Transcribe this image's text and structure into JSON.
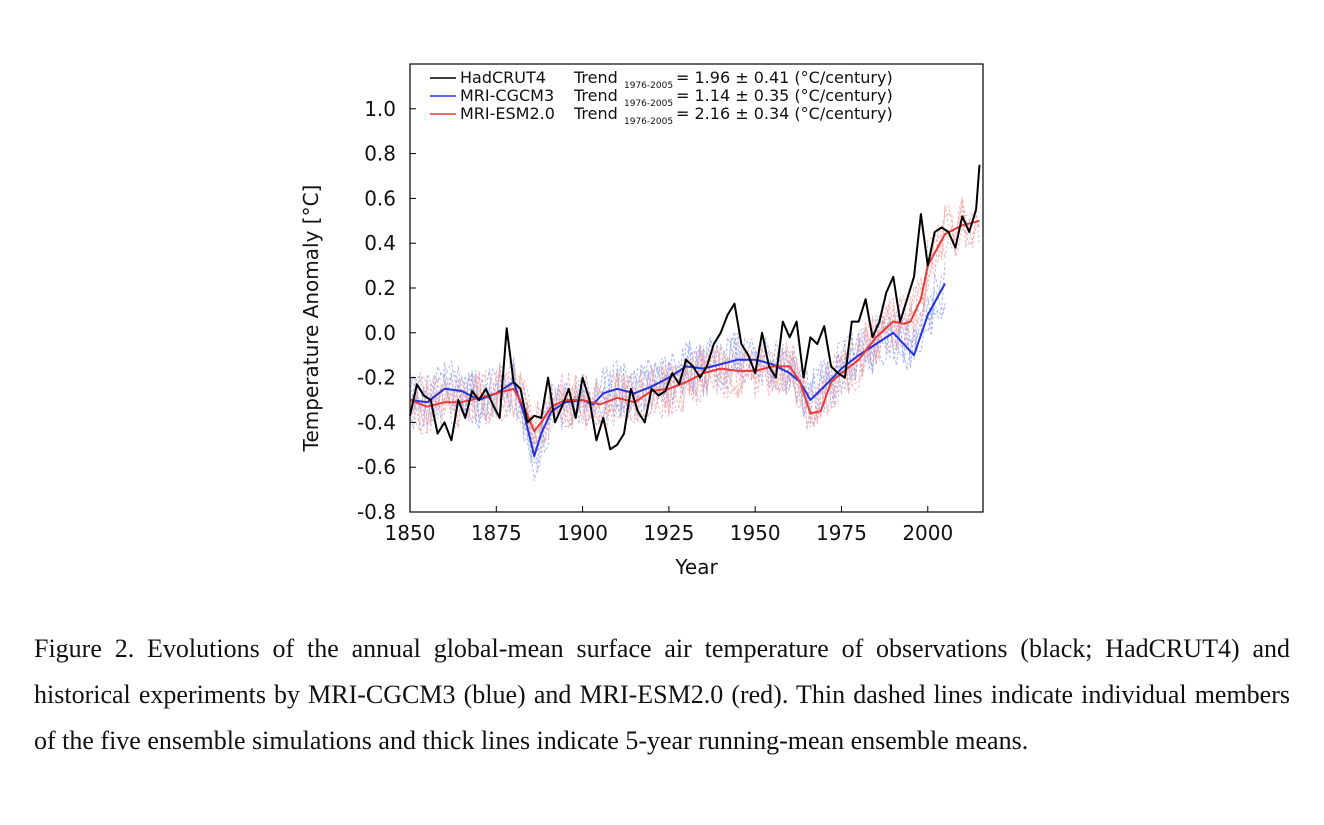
{
  "figure": {
    "caption": "Figure 2. Evolutions of the annual global-mean surface air temperature of observations (black; HadCRUT4) and historical experiments by MRI-CGCM3 (blue) and MRI-ESM2.0 (red). Thin dashed lines indicate individual members of the five ensemble simulations and thick lines indicate 5-year running-mean ensemble means."
  },
  "legend": [
    {
      "name": "HadCRUT4",
      "trend_label": "Trend",
      "trend_sub": "1976-2005",
      "trend_value": "=  1.96 ± 0.41 (°C/century)",
      "color": "#000000"
    },
    {
      "name": "MRI-CGCM3",
      "trend_label": "Trend",
      "trend_sub": "1976-2005",
      "trend_value": "=  1.14 ± 0.35 (°C/century)",
      "color": "#2233dd"
    },
    {
      "name": "MRI-ESM2.0",
      "trend_label": "Trend",
      "trend_sub": "1976-2005",
      "trend_value": "=  2.16 ± 0.34 (°C/century)",
      "color": "#e83a3a"
    }
  ],
  "chart_data": {
    "type": "line",
    "xlabel": "Year",
    "ylabel": "Temperature Anomaly [°C]",
    "xlim": [
      1850,
      2016
    ],
    "ylim": [
      -0.8,
      1.2
    ],
    "xticks": [
      1850,
      1875,
      1900,
      1925,
      1950,
      1975,
      2000
    ],
    "yticks": [
      -0.8,
      -0.6,
      -0.4,
      -0.2,
      0.0,
      0.2,
      0.4,
      0.6,
      0.8,
      1.0
    ],
    "ytick_labels": [
      "-0.8",
      "-0.6",
      "-0.4",
      "-0.2",
      "0.0",
      "0.2",
      "0.4",
      "0.6",
      "0.8",
      "1.0"
    ],
    "legend_position": "top-left",
    "series": [
      {
        "name": "HadCRUT4",
        "style": "thick",
        "color": "#000000",
        "x": [
          1850,
          1852,
          1854,
          1856,
          1858,
          1860,
          1862,
          1864,
          1866,
          1868,
          1870,
          1872,
          1874,
          1876,
          1878,
          1880,
          1882,
          1884,
          1886,
          1888,
          1890,
          1892,
          1894,
          1896,
          1898,
          1900,
          1902,
          1904,
          1906,
          1908,
          1910,
          1912,
          1914,
          1916,
          1918,
          1920,
          1922,
          1924,
          1926,
          1928,
          1930,
          1932,
          1934,
          1936,
          1938,
          1940,
          1942,
          1944,
          1946,
          1948,
          1950,
          1952,
          1954,
          1956,
          1958,
          1960,
          1962,
          1964,
          1966,
          1968,
          1970,
          1972,
          1974,
          1976,
          1978,
          1980,
          1982,
          1984,
          1986,
          1988,
          1990,
          1992,
          1994,
          1996,
          1998,
          2000,
          2002,
          2004,
          2006,
          2008,
          2010,
          2012,
          2014,
          2015
        ],
        "values": [
          -0.37,
          -0.23,
          -0.28,
          -0.3,
          -0.45,
          -0.4,
          -0.48,
          -0.3,
          -0.38,
          -0.26,
          -0.3,
          -0.25,
          -0.32,
          -0.38,
          0.02,
          -0.22,
          -0.25,
          -0.4,
          -0.37,
          -0.38,
          -0.2,
          -0.4,
          -0.33,
          -0.25,
          -0.38,
          -0.2,
          -0.3,
          -0.48,
          -0.38,
          -0.52,
          -0.5,
          -0.45,
          -0.25,
          -0.35,
          -0.4,
          -0.25,
          -0.28,
          -0.26,
          -0.18,
          -0.23,
          -0.12,
          -0.15,
          -0.2,
          -0.15,
          -0.05,
          0.0,
          0.08,
          0.13,
          -0.05,
          -0.1,
          -0.18,
          0.0,
          -0.15,
          -0.2,
          0.05,
          -0.02,
          0.05,
          -0.2,
          -0.02,
          -0.05,
          0.03,
          -0.15,
          -0.18,
          -0.2,
          0.05,
          0.05,
          0.15,
          -0.02,
          0.05,
          0.18,
          0.25,
          0.05,
          0.15,
          0.25,
          0.53,
          0.3,
          0.45,
          0.47,
          0.45,
          0.38,
          0.52,
          0.45,
          0.55,
          0.75
        ]
      },
      {
        "name": "MRI-CGCM3",
        "style": "thick",
        "color": "#2233dd",
        "x": [
          1850,
          1855,
          1860,
          1865,
          1870,
          1875,
          1880,
          1883,
          1886,
          1888,
          1891,
          1895,
          1900,
          1903,
          1906,
          1910,
          1915,
          1920,
          1925,
          1930,
          1935,
          1940,
          1945,
          1950,
          1955,
          1960,
          1963,
          1966,
          1970,
          1975,
          1980,
          1985,
          1990,
          1993,
          1996,
          2000,
          2005
        ],
        "values": [
          -0.3,
          -0.31,
          -0.25,
          -0.26,
          -0.3,
          -0.27,
          -0.22,
          -0.36,
          -0.55,
          -0.45,
          -0.35,
          -0.31,
          -0.3,
          -0.32,
          -0.27,
          -0.25,
          -0.27,
          -0.24,
          -0.2,
          -0.15,
          -0.16,
          -0.14,
          -0.12,
          -0.12,
          -0.14,
          -0.18,
          -0.22,
          -0.3,
          -0.24,
          -0.16,
          -0.1,
          -0.05,
          0.0,
          -0.05,
          -0.1,
          0.08,
          0.22
        ]
      },
      {
        "name": "MRI-ESM2.0",
        "style": "thick",
        "color": "#e83a3a",
        "x": [
          1850,
          1855,
          1860,
          1865,
          1870,
          1875,
          1880,
          1883,
          1886,
          1888,
          1891,
          1895,
          1900,
          1905,
          1910,
          1915,
          1920,
          1925,
          1930,
          1935,
          1940,
          1945,
          1950,
          1955,
          1960,
          1963,
          1966,
          1969,
          1972,
          1975,
          1980,
          1985,
          1990,
          1993,
          1995,
          1998,
          2000,
          2005,
          2010,
          2015
        ],
        "values": [
          -0.3,
          -0.33,
          -0.31,
          -0.31,
          -0.29,
          -0.27,
          -0.25,
          -0.33,
          -0.44,
          -0.4,
          -0.33,
          -0.3,
          -0.3,
          -0.32,
          -0.29,
          -0.31,
          -0.26,
          -0.25,
          -0.22,
          -0.18,
          -0.16,
          -0.17,
          -0.17,
          -0.15,
          -0.15,
          -0.22,
          -0.36,
          -0.35,
          -0.22,
          -0.18,
          -0.12,
          -0.02,
          0.05,
          0.04,
          0.05,
          0.15,
          0.3,
          0.44,
          0.48,
          0.5
        ]
      }
    ]
  }
}
